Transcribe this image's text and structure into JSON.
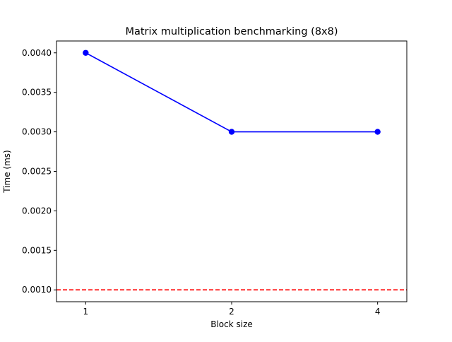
{
  "chart_data": {
    "type": "line",
    "title": "Matrix multiplication benchmarking (8x8)",
    "xlabel": "Block size",
    "ylabel": "Time (ms)",
    "categories": [
      "1",
      "2",
      "4"
    ],
    "series": [
      {
        "values": [
          0.004,
          0.003,
          0.003
        ],
        "color": "#0000ff",
        "marker": "circle",
        "line_style": "solid"
      }
    ],
    "reference_line": {
      "y": 0.001,
      "color": "#ff0000",
      "line_style": "dashed"
    },
    "ylim": [
      0.00085,
      0.00415
    ],
    "y_ticks": [
      0.001,
      0.0015,
      0.002,
      0.0025,
      0.003,
      0.0035,
      0.004
    ],
    "y_tick_labels": [
      "0.0010",
      "0.0015",
      "0.0020",
      "0.0025",
      "0.0030",
      "0.0035",
      "0.0040"
    ],
    "grid": false,
    "legend": false
  }
}
